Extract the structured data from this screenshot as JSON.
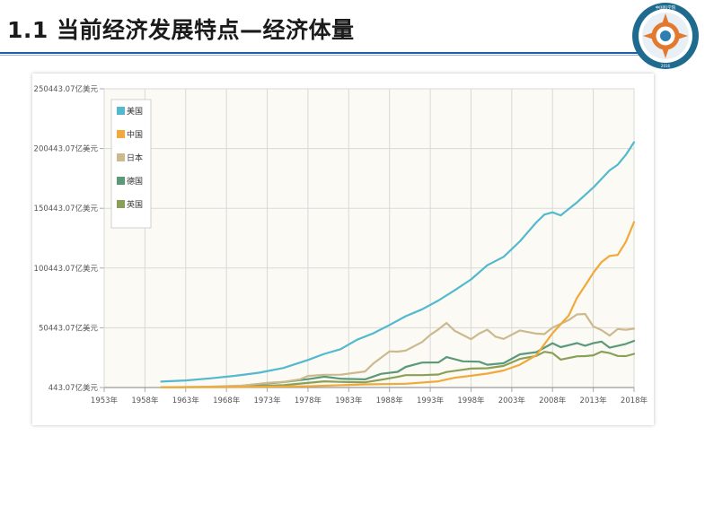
{
  "slide": {
    "title": "1.1 当前经济发展特点—经济体量"
  },
  "logo": {
    "top_text": "中国科学院",
    "ring_text": "Sustainable Institute of Energy Economy Academy of Sciences",
    "year": "2016"
  },
  "colors": {
    "title_rule": "#1f5fa8",
    "plot_bg": "#fbfaf4",
    "axis": "#a9a9a9"
  },
  "chart_data": {
    "type": "line",
    "y_ticks": [
      "250443.07亿美元",
      "200443.07亿美元",
      "150443.07亿美元",
      "100443.07亿美元",
      "50443.07亿美元",
      "443.07亿美元"
    ],
    "y_tick_values": [
      250443.07,
      200443.07,
      150443.07,
      100443.07,
      50443.07,
      443.07
    ],
    "ylim": [
      443.07,
      250443.07
    ],
    "x_ticks": [
      "1953年",
      "1958年",
      "1963年",
      "1968年",
      "1973年",
      "1978年",
      "1983年",
      "1988年",
      "1993年",
      "1998年",
      "2003年",
      "2008年",
      "2013年",
      "2018年"
    ],
    "x_tick_values": [
      1953,
      1958,
      1963,
      1968,
      1973,
      1978,
      1983,
      1988,
      1993,
      1998,
      2003,
      2008,
      2013,
      2018
    ],
    "xlim": [
      1953,
      2018
    ],
    "grid": true,
    "legend_position": "top-left",
    "series": [
      {
        "name": "美国",
        "color": "#52b9ce",
        "points": [
          [
            1960,
            5400
          ],
          [
            1963,
            6400
          ],
          [
            1966,
            8100
          ],
          [
            1969,
            10200
          ],
          [
            1972,
            12800
          ],
          [
            1975,
            16800
          ],
          [
            1978,
            23500
          ],
          [
            1980,
            28600
          ],
          [
            1982,
            32500
          ],
          [
            1984,
            40400
          ],
          [
            1986,
            45800
          ],
          [
            1988,
            52800
          ],
          [
            1990,
            60100
          ],
          [
            1992,
            65900
          ],
          [
            1994,
            73300
          ],
          [
            1996,
            81800
          ],
          [
            1998,
            90900
          ],
          [
            2000,
            102800
          ],
          [
            2002,
            109800
          ],
          [
            2004,
            122800
          ],
          [
            2006,
            138600
          ],
          [
            2007,
            145200
          ],
          [
            2008,
            147100
          ],
          [
            2009,
            144500
          ],
          [
            2011,
            155400
          ],
          [
            2013,
            167800
          ],
          [
            2015,
            182200
          ],
          [
            2016,
            186900
          ],
          [
            2017,
            195200
          ],
          [
            2018,
            205800
          ]
        ]
      },
      {
        "name": "中国",
        "color": "#f0a93a",
        "points": [
          [
            1960,
            600
          ],
          [
            1970,
            900
          ],
          [
            1978,
            1500
          ],
          [
            1985,
            3100
          ],
          [
            1990,
            3600
          ],
          [
            1994,
            5600
          ],
          [
            1996,
            8600
          ],
          [
            1998,
            10300
          ],
          [
            2000,
            12100
          ],
          [
            2002,
            14700
          ],
          [
            2004,
            19500
          ],
          [
            2006,
            27500
          ],
          [
            2008,
            45900
          ],
          [
            2010,
            60900
          ],
          [
            2011,
            75500
          ],
          [
            2012,
            85700
          ],
          [
            2013,
            96400
          ],
          [
            2014,
            105400
          ],
          [
            2015,
            110600
          ],
          [
            2016,
            111400
          ],
          [
            2017,
            122400
          ],
          [
            2018,
            138900
          ]
        ]
      },
      {
        "name": "日本",
        "color": "#ccb98e",
        "points": [
          [
            1960,
            600
          ],
          [
            1965,
            900
          ],
          [
            1970,
            2100
          ],
          [
            1973,
            4300
          ],
          [
            1975,
            5200
          ],
          [
            1977,
            7200
          ],
          [
            1978,
            10100
          ],
          [
            1980,
            11100
          ],
          [
            1982,
            11200
          ],
          [
            1985,
            13900
          ],
          [
            1986,
            20400
          ],
          [
            1988,
            30700
          ],
          [
            1989,
            30500
          ],
          [
            1990,
            31400
          ],
          [
            1992,
            38500
          ],
          [
            1993,
            44500
          ],
          [
            1994,
            49100
          ],
          [
            1995,
            54500
          ],
          [
            1996,
            47900
          ],
          [
            1998,
            40900
          ],
          [
            1999,
            45600
          ],
          [
            2000,
            48900
          ],
          [
            2001,
            43000
          ],
          [
            2002,
            41100
          ],
          [
            2004,
            48200
          ],
          [
            2006,
            45600
          ],
          [
            2007,
            45200
          ],
          [
            2008,
            50600
          ],
          [
            2010,
            57000
          ],
          [
            2011,
            61600
          ],
          [
            2012,
            62000
          ],
          [
            2013,
            51600
          ],
          [
            2014,
            48500
          ],
          [
            2015,
            43900
          ],
          [
            2016,
            49400
          ],
          [
            2017,
            48700
          ],
          [
            2018,
            49700
          ]
        ]
      },
      {
        "name": "德国",
        "color": "#5a9a78",
        "points": [
          [
            1970,
            2100
          ],
          [
            1975,
            5000
          ],
          [
            1978,
            7400
          ],
          [
            1980,
            9500
          ],
          [
            1982,
            7800
          ],
          [
            1985,
            7300
          ],
          [
            1987,
            11900
          ],
          [
            1989,
            13600
          ],
          [
            1990,
            17700
          ],
          [
            1992,
            21300
          ],
          [
            1994,
            21500
          ],
          [
            1995,
            25900
          ],
          [
            1997,
            22400
          ],
          [
            1999,
            22100
          ],
          [
            2000,
            19500
          ],
          [
            2002,
            20800
          ],
          [
            2004,
            28200
          ],
          [
            2006,
            30000
          ],
          [
            2008,
            37500
          ],
          [
            2009,
            34200
          ],
          [
            2011,
            37600
          ],
          [
            2012,
            35400
          ],
          [
            2013,
            37500
          ],
          [
            2014,
            38900
          ],
          [
            2015,
            33800
          ],
          [
            2017,
            36900
          ],
          [
            2018,
            39500
          ]
        ]
      },
      {
        "name": "英国",
        "color": "#8aa056",
        "points": [
          [
            1960,
            700
          ],
          [
            1968,
            1100
          ],
          [
            1970,
            1300
          ],
          [
            1975,
            2400
          ],
          [
            1980,
            5600
          ],
          [
            1982,
            5200
          ],
          [
            1985,
            4800
          ],
          [
            1987,
            7000
          ],
          [
            1989,
            9400
          ],
          [
            1990,
            10800
          ],
          [
            1992,
            10800
          ],
          [
            1994,
            11300
          ],
          [
            1995,
            13400
          ],
          [
            1998,
            16300
          ],
          [
            2000,
            16600
          ],
          [
            2002,
            18500
          ],
          [
            2004,
            24400
          ],
          [
            2006,
            26900
          ],
          [
            2007,
            30300
          ],
          [
            2008,
            29300
          ],
          [
            2009,
            23800
          ],
          [
            2011,
            26600
          ],
          [
            2012,
            26700
          ],
          [
            2013,
            27400
          ],
          [
            2014,
            30500
          ],
          [
            2015,
            29300
          ],
          [
            2016,
            26900
          ],
          [
            2017,
            26700
          ],
          [
            2018,
            28600
          ]
        ]
      }
    ]
  }
}
